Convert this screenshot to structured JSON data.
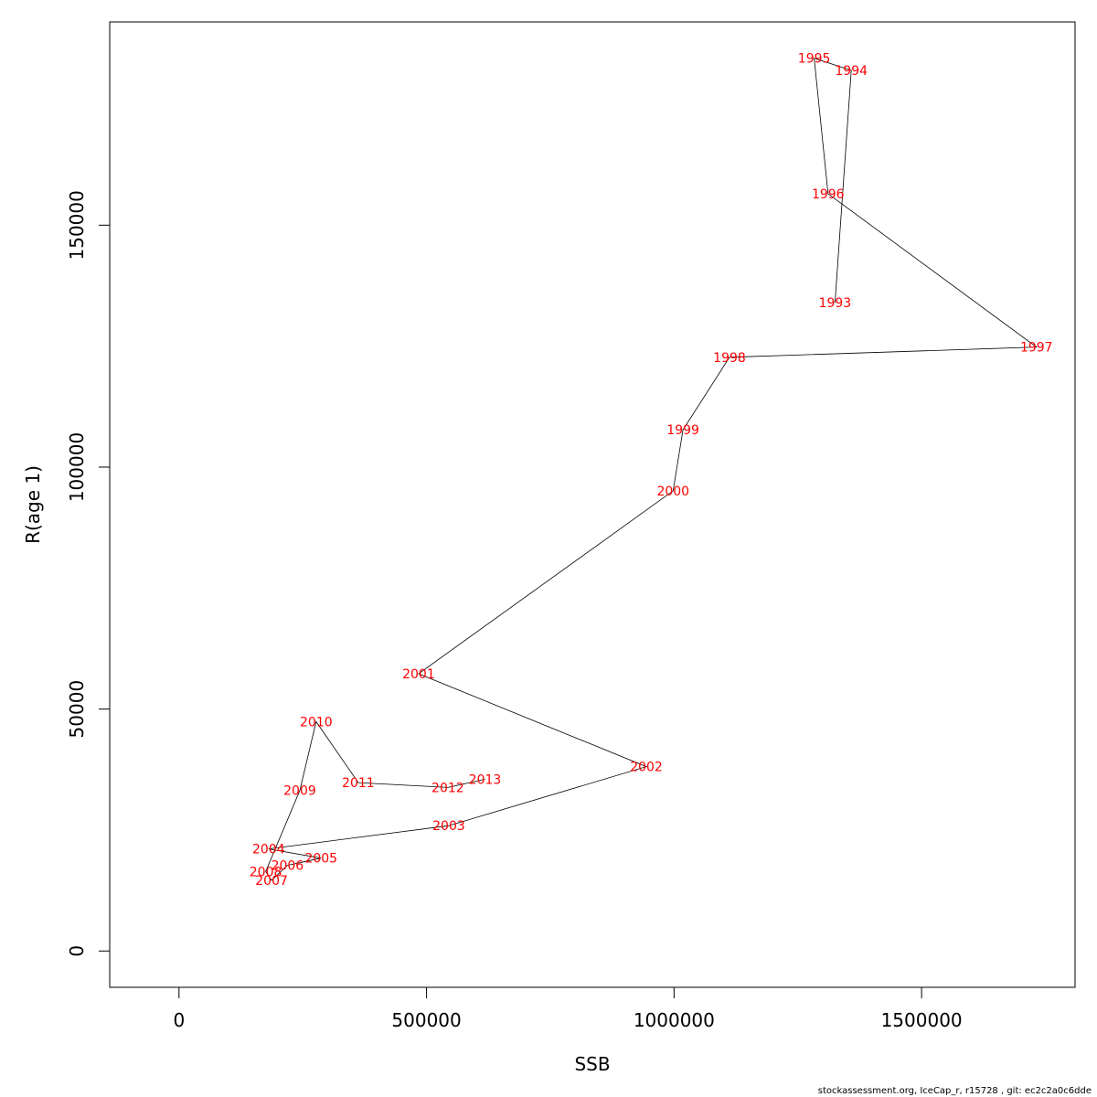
{
  "chart_data": {
    "type": "line",
    "xlabel": "SSB",
    "ylabel": "R(age 1)",
    "xlim": [
      -140000,
      1810000
    ],
    "ylim": [
      -7500,
      192000
    ],
    "x_ticks": [
      0,
      500000,
      1000000,
      1500000
    ],
    "y_ticks": [
      0,
      50000,
      100000,
      150000
    ],
    "x_tick_labels": [
      "0",
      "500000",
      "1000000",
      "1500000"
    ],
    "y_tick_labels": [
      "0",
      "50000",
      "100000",
      "150000"
    ],
    "line_color": "#000000",
    "label_color": "#ff0000",
    "points": [
      {
        "year": "1993",
        "ssb": 1325000,
        "r": 134000
      },
      {
        "year": "1994",
        "ssb": 1358000,
        "r": 182000
      },
      {
        "year": "1995",
        "ssb": 1283000,
        "r": 184500
      },
      {
        "year": "1996",
        "ssb": 1311000,
        "r": 156500
      },
      {
        "year": "1997",
        "ssb": 1732000,
        "r": 124800
      },
      {
        "year": "1998",
        "ssb": 1112000,
        "r": 122700
      },
      {
        "year": "1999",
        "ssb": 1018000,
        "r": 107700
      },
      {
        "year": "2000",
        "ssb": 998000,
        "r": 95100
      },
      {
        "year": "2001",
        "ssb": 484000,
        "r": 57300
      },
      {
        "year": "2002",
        "ssb": 944000,
        "r": 38100
      },
      {
        "year": "2003",
        "ssb": 545000,
        "r": 25900
      },
      {
        "year": "2004",
        "ssb": 181000,
        "r": 21100
      },
      {
        "year": "2005",
        "ssb": 287000,
        "r": 19200
      },
      {
        "year": "2006",
        "ssb": 219000,
        "r": 17700
      },
      {
        "year": "2007",
        "ssb": 187000,
        "r": 14600
      },
      {
        "year": "2008",
        "ssb": 175000,
        "r": 16400
      },
      {
        "year": "2009",
        "ssb": 244000,
        "r": 33200
      },
      {
        "year": "2010",
        "ssb": 277000,
        "r": 47400
      },
      {
        "year": "2011",
        "ssb": 362000,
        "r": 34800
      },
      {
        "year": "2012",
        "ssb": 543000,
        "r": 33800
      },
      {
        "year": "2013",
        "ssb": 618000,
        "r": 35500
      }
    ]
  },
  "footer_text": "stockassessment.org, IceCap_r, r15728 , git: ec2c2a0c6dde"
}
